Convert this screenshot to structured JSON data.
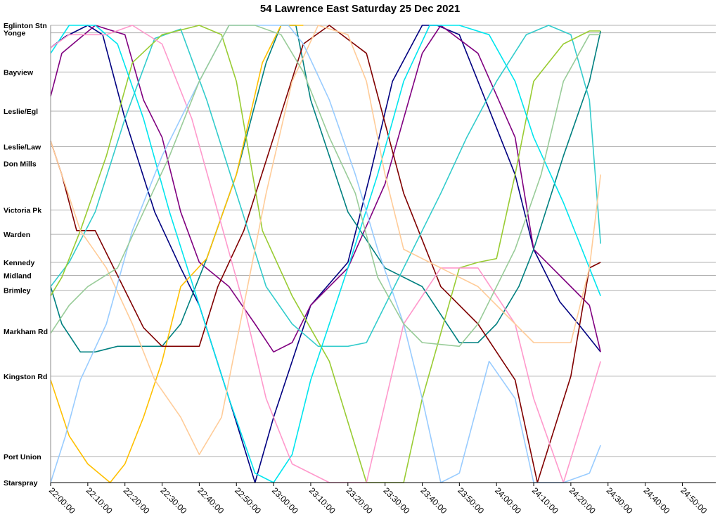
{
  "chart_data": {
    "type": "line",
    "title": "54 Lawrence East Saturday 25 Dec 2021",
    "y_categories": [
      "Eglinton Stn",
      "Yonge",
      "Bayview",
      "Leslie/Egl",
      "Leslie/Law",
      "Don Mills",
      "Victoria Pk",
      "Warden",
      "Kennedy",
      "Midland",
      "Brimley",
      "Markham Rd",
      "Kingston Rd",
      "Port Union",
      "Starspray"
    ],
    "stop_positions_km": [
      0,
      0.4,
      2.5,
      4.6,
      6.5,
      7.4,
      9.9,
      11.2,
      12.7,
      13.4,
      14.2,
      16.4,
      18.8,
      23.1,
      24.5
    ],
    "x_ticks": [
      "22:00:00",
      "22:10:00",
      "22:20:00",
      "22:30:00",
      "22:40:00",
      "22:50:00",
      "23:00:00",
      "23:10:00",
      "23:20:00",
      "23:30:00",
      "23:40:00",
      "23:50:00",
      "24:00:00",
      "24:10:00",
      "24:20:00",
      "24:30:00",
      "24:40:00",
      "24:50:00"
    ],
    "x_range_minutes": [
      0,
      179
    ],
    "grid": true,
    "series": [
      {
        "color": "#000080",
        "points": [
          [
            -1,
            1.2
          ],
          [
            4,
            0.6
          ],
          [
            10,
            0
          ],
          [
            14,
            0.5
          ],
          [
            20,
            5
          ],
          [
            28,
            10
          ],
          [
            35,
            13
          ],
          [
            40,
            15
          ],
          [
            48,
            20
          ],
          [
            55,
            24.5
          ],
          [
            60,
            21
          ],
          [
            70,
            15
          ],
          [
            80,
            12.7
          ],
          [
            86,
            8
          ],
          [
            92,
            3
          ],
          [
            100,
            0
          ],
          [
            104,
            0
          ],
          [
            110,
            0.5
          ],
          [
            115,
            3
          ],
          [
            125,
            8
          ],
          [
            130,
            12
          ],
          [
            137,
            14.8
          ],
          [
            142,
            16
          ],
          [
            148,
            17.5
          ]
        ]
      },
      {
        "color": "#800080",
        "points": [
          [
            -1,
            3.8
          ],
          [
            3,
            1.5
          ],
          [
            12,
            0
          ],
          [
            20,
            0.5
          ],
          [
            25,
            4
          ],
          [
            30,
            6
          ],
          [
            35,
            10
          ],
          [
            40,
            12.7
          ],
          [
            48,
            14
          ],
          [
            55,
            16
          ],
          [
            60,
            17.5
          ],
          [
            65,
            17
          ],
          [
            70,
            15
          ],
          [
            80,
            13
          ],
          [
            90,
            8.5
          ],
          [
            100,
            1.5
          ],
          [
            105,
            0
          ],
          [
            115,
            1.5
          ],
          [
            125,
            6
          ],
          [
            130,
            12
          ],
          [
            137,
            13.4
          ],
          [
            145,
            15
          ],
          [
            148,
            17.5
          ]
        ]
      },
      {
        "color": "#008080",
        "points": [
          [
            -1,
            14
          ],
          [
            3,
            16
          ],
          [
            8,
            17.5
          ],
          [
            12,
            17.5
          ],
          [
            18,
            17.2
          ],
          [
            30,
            17.2
          ],
          [
            35,
            16
          ],
          [
            42,
            12.5
          ],
          [
            50,
            8
          ],
          [
            58,
            2
          ],
          [
            62,
            0
          ],
          [
            66,
            0
          ],
          [
            70,
            4
          ],
          [
            80,
            10
          ],
          [
            90,
            13
          ],
          [
            100,
            14
          ],
          [
            110,
            17
          ],
          [
            115,
            17
          ],
          [
            120,
            16
          ],
          [
            126,
            14
          ],
          [
            130,
            12
          ],
          [
            138,
            7
          ],
          [
            145,
            3
          ],
          [
            148,
            0.3
          ]
        ]
      },
      {
        "color": "#ffc000",
        "points": [
          [
            -1,
            19
          ],
          [
            5,
            22
          ],
          [
            10,
            23.5
          ],
          [
            16,
            24.5
          ],
          [
            20,
            23.5
          ],
          [
            25,
            21
          ],
          [
            30,
            18
          ],
          [
            35,
            14
          ],
          [
            42,
            12.5
          ],
          [
            50,
            8
          ],
          [
            57,
            2
          ],
          [
            62,
            0
          ],
          [
            68,
            0
          ]
        ]
      },
      {
        "color": "#800000",
        "points": [
          [
            -1,
            6.2
          ],
          [
            3,
            8
          ],
          [
            7,
            11
          ],
          [
            12,
            11
          ],
          [
            18,
            13.4
          ],
          [
            25,
            16.2
          ],
          [
            30,
            17.2
          ],
          [
            35,
            17.2
          ],
          [
            40,
            17.2
          ],
          [
            45,
            14
          ],
          [
            52,
            11
          ],
          [
            60,
            6
          ],
          [
            68,
            1
          ],
          [
            75,
            0
          ],
          [
            85,
            1.5
          ],
          [
            95,
            9
          ],
          [
            105,
            14
          ],
          [
            115,
            16
          ],
          [
            125,
            19
          ],
          [
            131,
            24.5
          ],
          [
            140,
            18.8
          ],
          [
            145,
            13
          ],
          [
            148,
            12.7
          ]
        ]
      },
      {
        "color": "#33cccc",
        "points": [
          [
            -1,
            14
          ],
          [
            5,
            12.7
          ],
          [
            12,
            10
          ],
          [
            20,
            5
          ],
          [
            28,
            0.7
          ],
          [
            35,
            0.2
          ],
          [
            42,
            4
          ],
          [
            50,
            9
          ],
          [
            58,
            14
          ],
          [
            65,
            16
          ],
          [
            72,
            17.2
          ],
          [
            80,
            17.2
          ],
          [
            85,
            17
          ],
          [
            95,
            13
          ],
          [
            105,
            9
          ],
          [
            112,
            6
          ],
          [
            120,
            3
          ],
          [
            128,
            0.5
          ],
          [
            134,
            0
          ],
          [
            140,
            0.5
          ],
          [
            145,
            4
          ],
          [
            148,
            11.7
          ]
        ]
      },
      {
        "color": "#99cc33",
        "points": [
          [
            -1,
            14.5
          ],
          [
            3,
            13.5
          ],
          [
            8,
            11
          ],
          [
            15,
            7
          ],
          [
            22,
            2
          ],
          [
            30,
            0.5
          ],
          [
            40,
            0
          ],
          [
            46,
            0.5
          ],
          [
            50,
            3
          ],
          [
            57,
            11
          ],
          [
            65,
            14.5
          ],
          [
            75,
            18
          ],
          [
            85,
            24.5
          ],
          [
            95,
            24.5
          ],
          [
            100,
            20
          ],
          [
            110,
            13
          ],
          [
            115,
            12.7
          ],
          [
            120,
            12.5
          ],
          [
            125,
            8
          ],
          [
            130,
            3
          ],
          [
            138,
            1
          ],
          [
            145,
            0.3
          ],
          [
            148,
            0.3
          ]
        ]
      },
      {
        "color": "#00e5ee",
        "points": [
          [
            -1,
            1.5
          ],
          [
            5,
            0
          ],
          [
            12,
            0
          ],
          [
            18,
            1
          ],
          [
            25,
            5
          ],
          [
            32,
            10
          ],
          [
            40,
            15
          ],
          [
            48,
            20
          ],
          [
            55,
            24
          ],
          [
            60,
            24.5
          ],
          [
            65,
            23
          ],
          [
            70,
            19
          ],
          [
            80,
            13
          ],
          [
            88,
            8
          ],
          [
            95,
            3
          ],
          [
            102,
            0
          ],
          [
            110,
            0
          ],
          [
            118,
            0.5
          ],
          [
            125,
            3
          ],
          [
            130,
            6
          ],
          [
            138,
            9.5
          ],
          [
            145,
            13
          ],
          [
            148,
            14.5
          ]
        ]
      },
      {
        "color": "#ff99cc",
        "points": [
          [
            -1,
            1.2
          ],
          [
            5,
            0.5
          ],
          [
            15,
            0.5
          ],
          [
            22,
            0
          ],
          [
            30,
            1
          ],
          [
            38,
            5
          ],
          [
            45,
            10
          ],
          [
            52,
            15
          ],
          [
            58,
            20
          ],
          [
            65,
            23.5
          ],
          [
            75,
            24.5
          ],
          [
            85,
            24.5
          ],
          [
            95,
            16
          ],
          [
            105,
            13
          ],
          [
            115,
            13
          ],
          [
            125,
            16
          ],
          [
            130,
            20
          ],
          [
            138,
            24.5
          ],
          [
            145,
            20
          ],
          [
            148,
            18
          ]
        ]
      },
      {
        "color": "#ffcc99",
        "points": [
          [
            -1,
            6.2
          ],
          [
            3,
            8
          ],
          [
            8,
            11
          ],
          [
            15,
            13
          ],
          [
            22,
            16
          ],
          [
            28,
            19
          ],
          [
            35,
            21
          ],
          [
            40,
            23
          ],
          [
            46,
            21
          ],
          [
            52,
            15
          ],
          [
            58,
            9
          ],
          [
            65,
            3
          ],
          [
            72,
            0
          ],
          [
            80,
            0.5
          ],
          [
            85,
            3
          ],
          [
            90,
            8
          ],
          [
            95,
            12
          ],
          [
            105,
            13
          ],
          [
            115,
            14
          ],
          [
            125,
            16
          ],
          [
            130,
            17
          ],
          [
            140,
            17
          ],
          [
            145,
            13
          ],
          [
            148,
            8
          ]
        ]
      },
      {
        "color": "#99ccff",
        "points": [
          [
            -1,
            24.5
          ],
          [
            4,
            22
          ],
          [
            8,
            19
          ],
          [
            15,
            16
          ],
          [
            22,
            11
          ],
          [
            30,
            7
          ],
          [
            40,
            3
          ],
          [
            48,
            0
          ],
          [
            58,
            0
          ],
          [
            64,
            0
          ],
          [
            68,
            1
          ],
          [
            75,
            4
          ],
          [
            82,
            8
          ],
          [
            88,
            12
          ],
          [
            95,
            16
          ],
          [
            100,
            20
          ],
          [
            105,
            24.5
          ],
          [
            110,
            24
          ],
          [
            118,
            18
          ],
          [
            125,
            20
          ],
          [
            130,
            24.5
          ],
          [
            138,
            24.5
          ],
          [
            145,
            24
          ],
          [
            148,
            22.5
          ]
        ]
      },
      {
        "color": "#99cc99",
        "points": [
          [
            -1,
            16.5
          ],
          [
            5,
            15
          ],
          [
            10,
            14
          ],
          [
            18,
            13
          ],
          [
            25,
            10
          ],
          [
            32,
            7
          ],
          [
            40,
            3
          ],
          [
            48,
            0
          ],
          [
            55,
            0
          ],
          [
            62,
            0.5
          ],
          [
            68,
            2.5
          ],
          [
            75,
            6
          ],
          [
            82,
            9
          ],
          [
            88,
            13.5
          ],
          [
            95,
            16
          ],
          [
            100,
            17
          ],
          [
            110,
            17.2
          ],
          [
            115,
            16
          ],
          [
            125,
            12
          ],
          [
            132,
            8
          ],
          [
            138,
            3
          ],
          [
            145,
            0.5
          ],
          [
            148,
            0.5
          ]
        ]
      }
    ]
  }
}
